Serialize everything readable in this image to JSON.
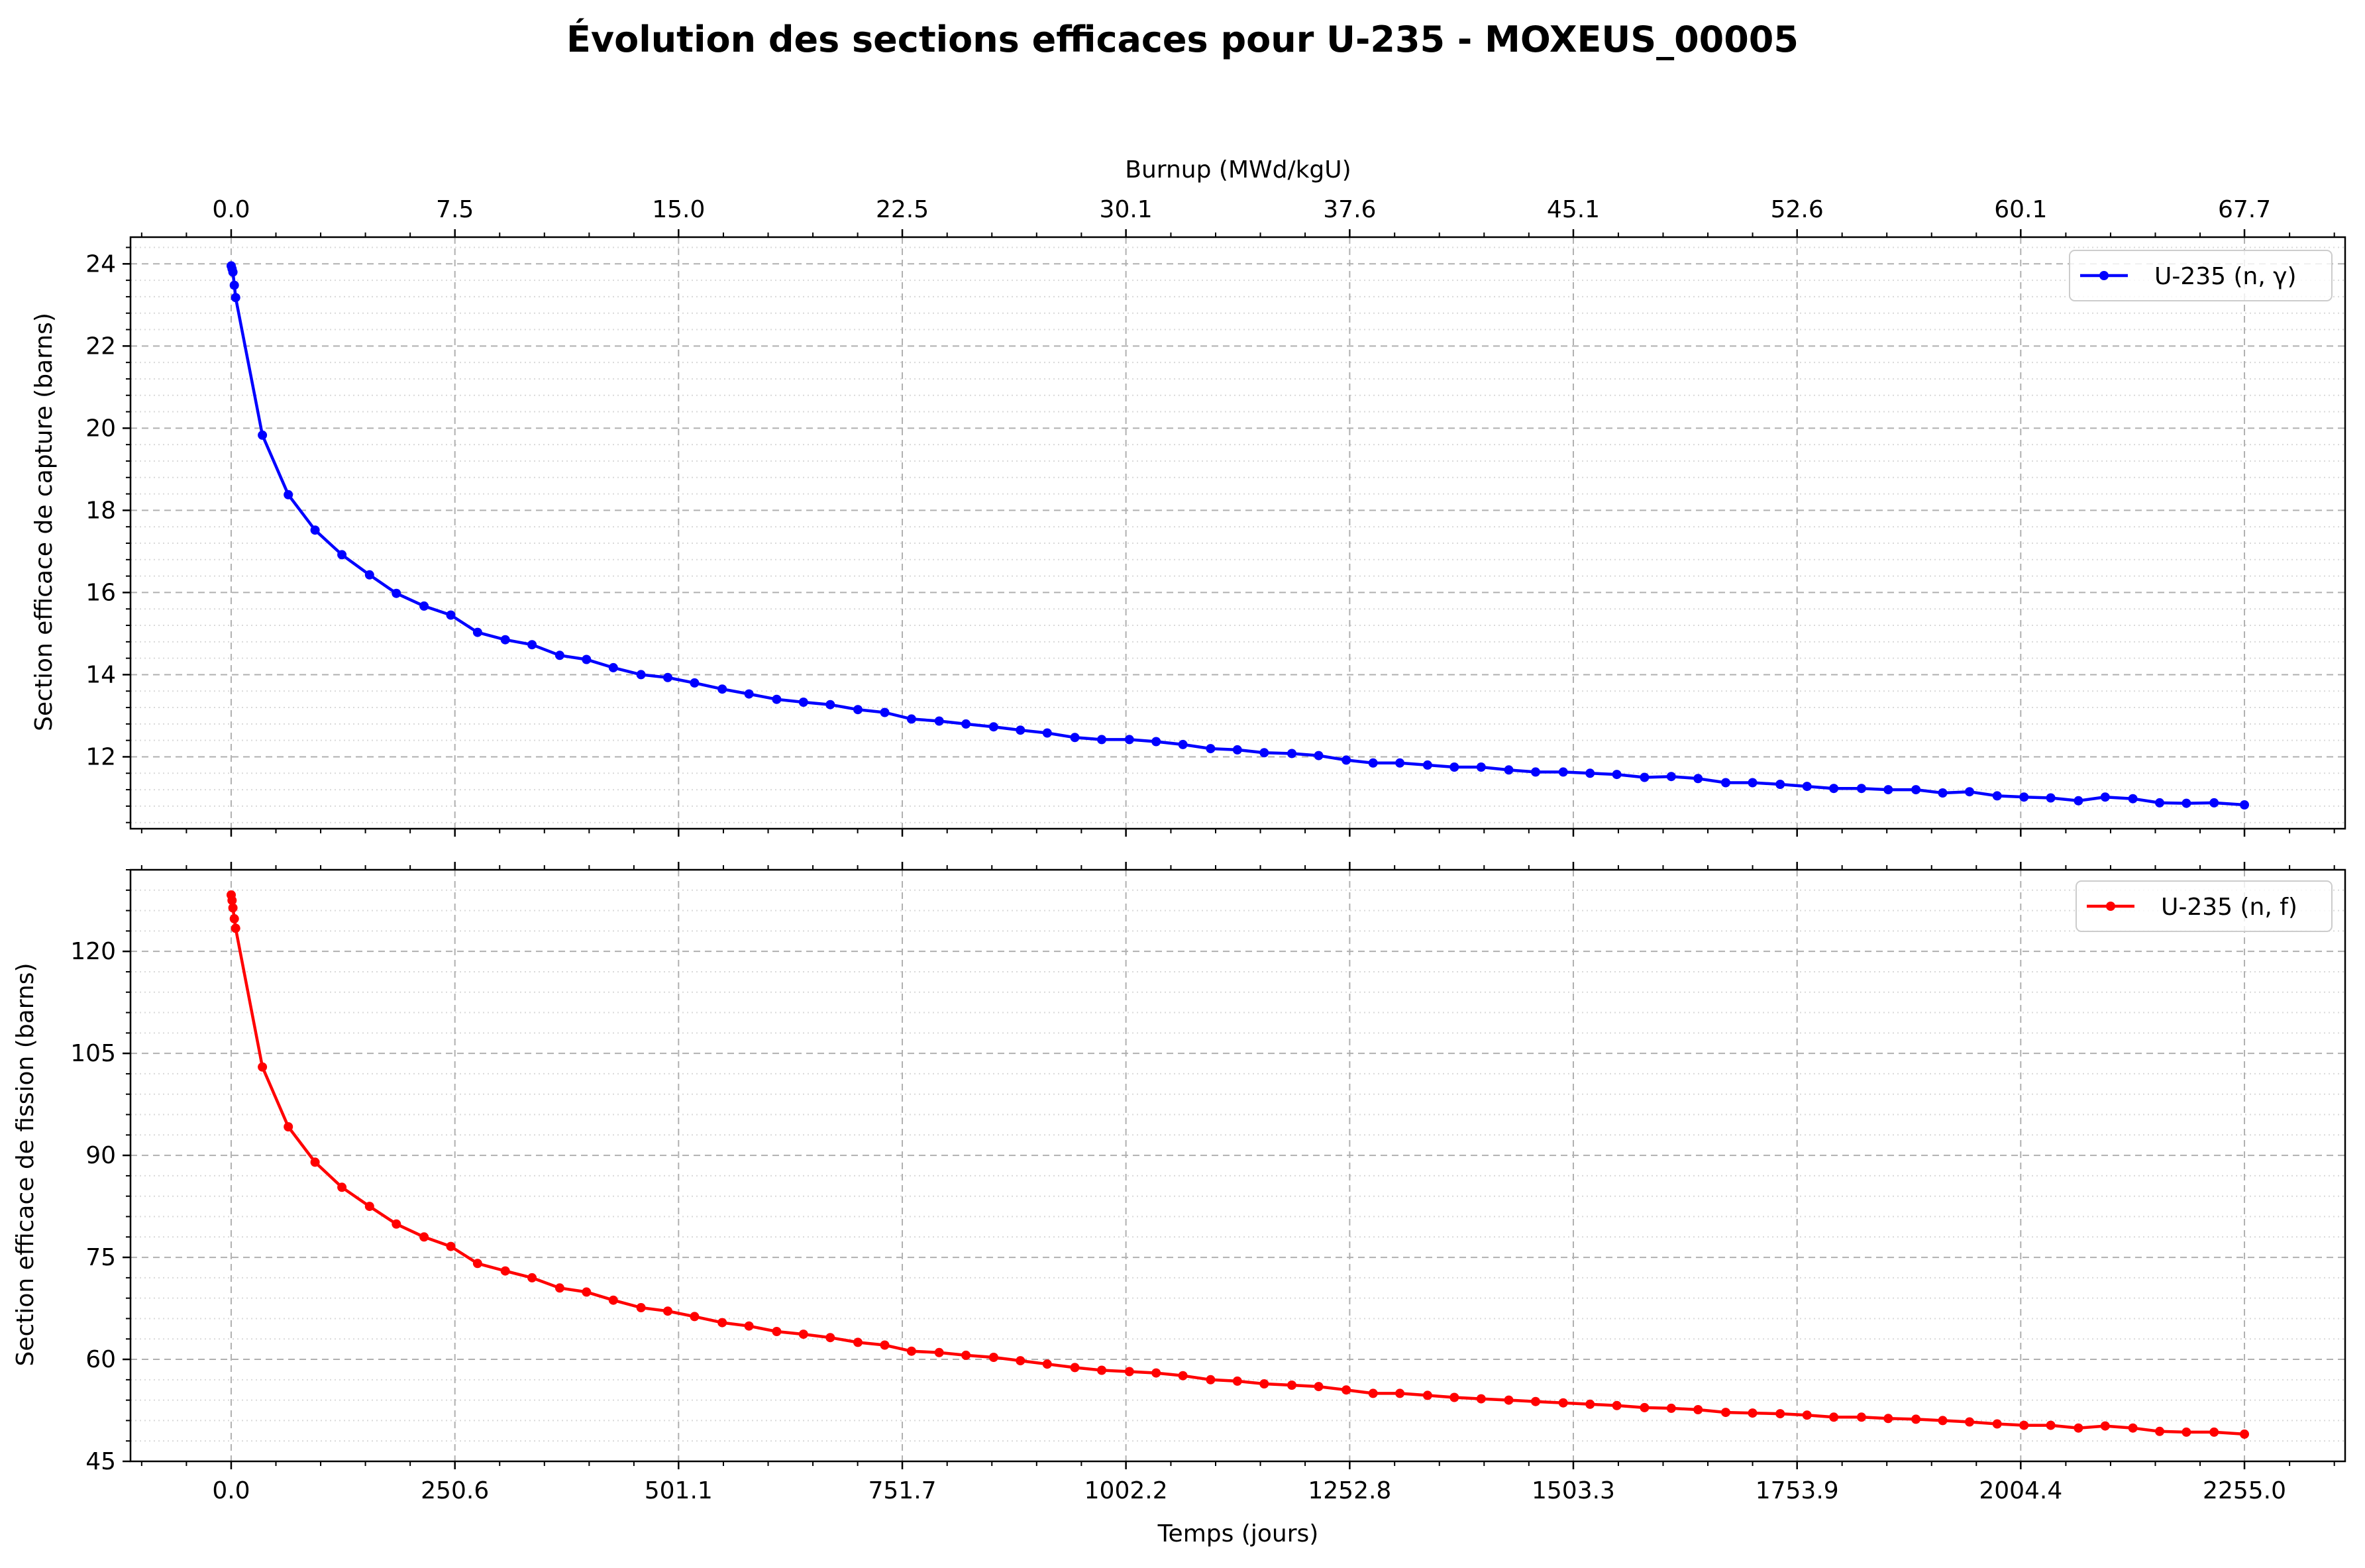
{
  "figure": {
    "title": "Évolution des sections efficaces pour U-235 - MOXEUS_00005",
    "xlabel_bottom": "Temps (jours)",
    "xlabel_top": "Burnup (MWd/kgU)"
  },
  "chart_data": [
    {
      "type": "line",
      "title": "",
      "xlabel": "",
      "ylabel": "Section efficace de capture (barns)",
      "secondary_xlabel": "Burnup (MWd/kgU)",
      "secondary_xticks": [
        "0.0",
        "7.5",
        "15.0",
        "22.5",
        "30.1",
        "37.6",
        "45.1",
        "52.6",
        "60.1",
        "67.7"
      ],
      "xlim": [
        -112.75,
        2367.75
      ],
      "ylim": [
        10.25,
        24.65
      ],
      "xticks": [
        0.0,
        250.6,
        501.1,
        751.7,
        1002.2,
        1252.8,
        1503.3,
        1753.9,
        2004.4,
        2255.0
      ],
      "xtick_labels": [
        "0.0",
        "250.6",
        "501.1",
        "751.7",
        "1002.2",
        "1252.8",
        "1503.3",
        "1753.9",
        "2004.4",
        "2255.0"
      ],
      "yticks": [
        12,
        14,
        16,
        18,
        20,
        22,
        24
      ],
      "ytick_labels": [
        "12",
        "14",
        "16",
        "18",
        "20",
        "22",
        "24"
      ],
      "grid": true,
      "legend": "top-right",
      "series": [
        {
          "name": "U-235 (n, γ)",
          "color": "#0000ff",
          "marker": "circle",
          "x": [
            0,
            1,
            2,
            3.5,
            5,
            35,
            64,
            94,
            124,
            155,
            185,
            216,
            246,
            276,
            307,
            337,
            368,
            398,
            428,
            459,
            489,
            519,
            550,
            580,
            611,
            641,
            671,
            702,
            732,
            762,
            793,
            823,
            854,
            884,
            914,
            945,
            975,
            1006,
            1036,
            1066,
            1097,
            1127,
            1157,
            1188,
            1218,
            1249,
            1279,
            1309,
            1340,
            1370,
            1400,
            1431,
            1461,
            1492,
            1522,
            1552,
            1583,
            1613,
            1643,
            1674,
            1704,
            1735,
            1765,
            1795,
            1826,
            1856,
            1887,
            1917,
            1947,
            1978,
            2008,
            2038,
            2069,
            2099,
            2130,
            2160,
            2190,
            2221,
            2255
          ],
          "y": [
            23.95,
            23.88,
            23.8,
            23.48,
            23.18,
            19.83,
            18.38,
            17.52,
            16.92,
            16.43,
            15.98,
            15.67,
            15.45,
            15.03,
            14.85,
            14.73,
            14.47,
            14.37,
            14.17,
            14.0,
            13.93,
            13.8,
            13.65,
            13.53,
            13.4,
            13.33,
            13.27,
            13.15,
            13.08,
            12.92,
            12.87,
            12.8,
            12.73,
            12.65,
            12.58,
            12.47,
            12.42,
            12.42,
            12.37,
            12.3,
            12.2,
            12.17,
            12.1,
            12.08,
            12.03,
            11.92,
            11.85,
            11.85,
            11.8,
            11.75,
            11.75,
            11.68,
            11.63,
            11.63,
            11.6,
            11.57,
            11.5,
            11.52,
            11.47,
            11.37,
            11.37,
            11.33,
            11.28,
            11.23,
            11.23,
            11.2,
            11.2,
            11.12,
            11.15,
            11.05,
            11.02,
            11.0,
            10.93,
            11.02,
            10.98,
            10.88,
            10.87,
            10.88,
            10.83
          ]
        }
      ]
    },
    {
      "type": "line",
      "title": "",
      "xlabel": "Temps (jours)",
      "ylabel": "Section efficace de fission (barns)",
      "xlim": [
        -112.75,
        2367.75
      ],
      "ylim": [
        45,
        132
      ],
      "xticks": [
        0.0,
        250.6,
        501.1,
        751.7,
        1002.2,
        1252.8,
        1503.3,
        1753.9,
        2004.4,
        2255.0
      ],
      "xtick_labels": [
        "0.0",
        "250.6",
        "501.1",
        "751.7",
        "1002.2",
        "1252.8",
        "1503.3",
        "1753.9",
        "2004.4",
        "2255.0"
      ],
      "yticks": [
        45,
        60,
        75,
        90,
        105,
        120
      ],
      "ytick_labels": [
        "45",
        "60",
        "75",
        "90",
        "105",
        "120"
      ],
      "grid": true,
      "legend": "top-right",
      "series": [
        {
          "name": "U-235 (n, f)",
          "color": "#ff0000",
          "marker": "circle",
          "x": [
            0,
            1,
            2,
            3.5,
            5,
            35,
            64,
            94,
            124,
            155,
            185,
            216,
            246,
            276,
            307,
            337,
            368,
            398,
            428,
            459,
            489,
            519,
            550,
            580,
            611,
            641,
            671,
            702,
            732,
            762,
            793,
            823,
            854,
            884,
            914,
            945,
            975,
            1006,
            1036,
            1066,
            1097,
            1127,
            1157,
            1188,
            1218,
            1249,
            1279,
            1309,
            1340,
            1370,
            1400,
            1431,
            1461,
            1492,
            1522,
            1552,
            1583,
            1613,
            1643,
            1674,
            1704,
            1735,
            1765,
            1795,
            1826,
            1856,
            1887,
            1917,
            1947,
            1978,
            2008,
            2038,
            2069,
            2099,
            2130,
            2160,
            2190,
            2221,
            2255
          ],
          "y": [
            128.3,
            127.5,
            126.4,
            124.8,
            123.4,
            103.0,
            94.2,
            89.0,
            85.3,
            82.5,
            79.9,
            78.0,
            76.6,
            74.1,
            73.0,
            72.0,
            70.5,
            69.9,
            68.7,
            67.6,
            67.1,
            66.3,
            65.4,
            64.9,
            64.1,
            63.7,
            63.2,
            62.5,
            62.1,
            61.2,
            61.0,
            60.6,
            60.3,
            59.8,
            59.3,
            58.8,
            58.4,
            58.2,
            58.0,
            57.6,
            57.0,
            56.8,
            56.4,
            56.2,
            56.0,
            55.5,
            55.0,
            55.0,
            54.7,
            54.4,
            54.2,
            54.0,
            53.8,
            53.6,
            53.4,
            53.2,
            52.9,
            52.8,
            52.6,
            52.2,
            52.1,
            52.0,
            51.8,
            51.5,
            51.5,
            51.3,
            51.2,
            51.0,
            50.8,
            50.5,
            50.3,
            50.3,
            49.9,
            50.2,
            49.9,
            49.4,
            49.3,
            49.3,
            49.0
          ]
        }
      ]
    }
  ]
}
